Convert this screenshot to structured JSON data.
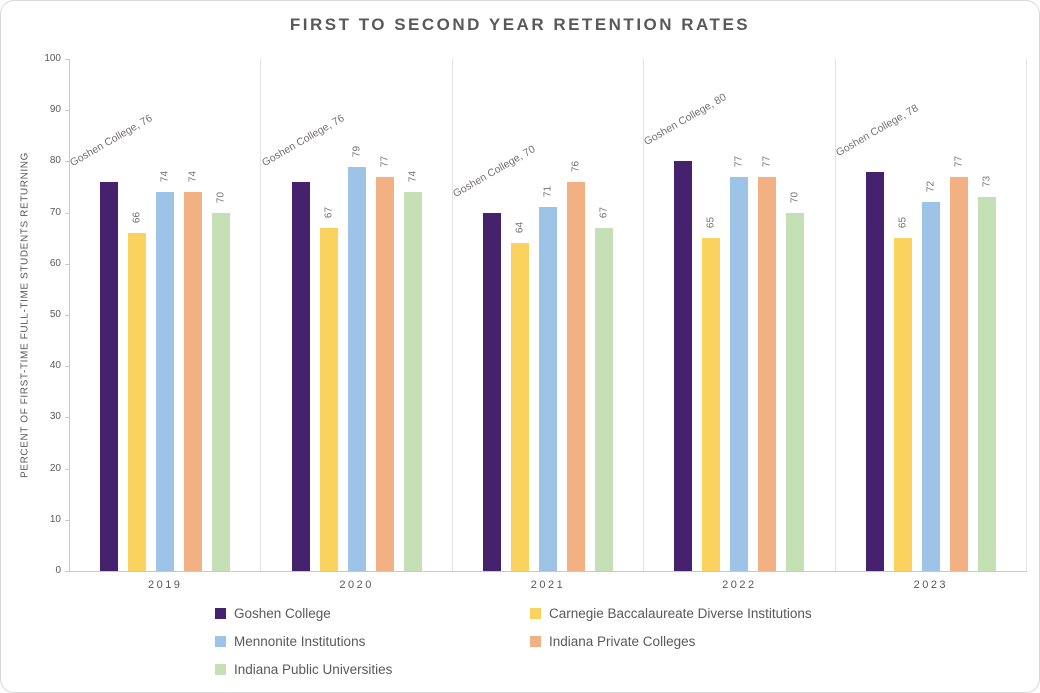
{
  "chart_data": {
    "type": "bar",
    "title": "FIRST TO SECOND YEAR RETENTION RATES",
    "ylabel": "PERCENT OF FIRST-TIME FULL-TIME STUDENTS RETURNING",
    "xlabel": "",
    "ylim": [
      0,
      100
    ],
    "ytick_step": 10,
    "grid": "category-separators",
    "legend_position": "bottom",
    "categories": [
      "2019",
      "2020",
      "2021",
      "2022",
      "2023"
    ],
    "series": [
      {
        "name": "Goshen College",
        "color": "#45216E",
        "values": [
          76,
          76,
          70,
          80,
          78
        ],
        "data_labels": [
          "Goshen College, 76",
          "Goshen College, 76",
          "Goshen College, 70",
          "Goshen College, 80",
          "Goshen College, 78"
        ]
      },
      {
        "name": "Carnegie Baccalaureate Diverse Institutions",
        "color": "#FBD25E",
        "values": [
          66,
          67,
          64,
          65,
          65
        ]
      },
      {
        "name": "Mennonite Institutions",
        "color": "#9DC3E6",
        "values": [
          74,
          79,
          71,
          77,
          72
        ]
      },
      {
        "name": "Indiana Private Colleges",
        "color": "#F2B183",
        "values": [
          74,
          77,
          76,
          77,
          77
        ]
      },
      {
        "name": "Indiana Public Universities",
        "color": "#C5E0B4",
        "values": [
          70,
          74,
          67,
          70,
          73
        ]
      }
    ]
  },
  "style_colors": {
    "title_text": "#595959",
    "axis_text": "#595959",
    "data_label_text": "#757070",
    "axis_line": "#C9C9C9",
    "separator_line": "#E3E3E3",
    "chart_border": "#D8D8D8"
  }
}
